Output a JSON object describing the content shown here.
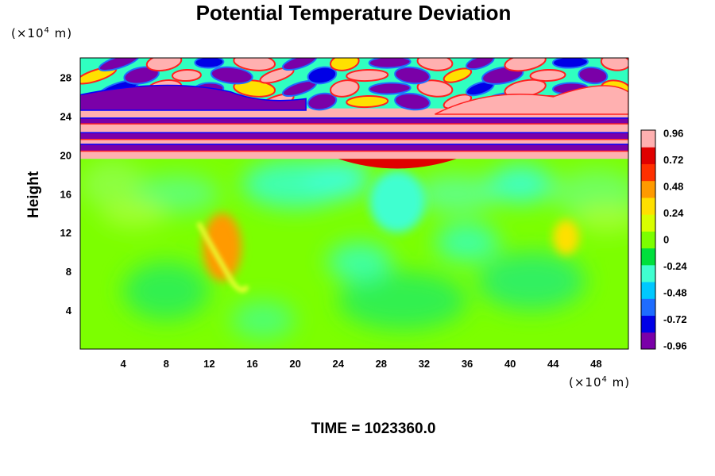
{
  "title": "Potential Temperature Deviation",
  "chart_data": {
    "type": "heatmap",
    "title": "Potential Temperature Deviation",
    "ylabel": "Height",
    "xunit": {
      "prefix": "(×10",
      "exp": "4",
      "suffix": " m)"
    },
    "yunit": {
      "prefix": "(×10",
      "exp": "4",
      "suffix": " m)"
    },
    "xlim": [
      0,
      51
    ],
    "ylim": [
      0,
      30
    ],
    "xticks": [
      4,
      8,
      12,
      16,
      20,
      24,
      28,
      32,
      36,
      40,
      44,
      48
    ],
    "yticks": [
      4,
      8,
      12,
      16,
      20,
      24,
      28
    ],
    "colorbar": {
      "ticks": [
        "0.96",
        "0.72",
        "0.48",
        "0.24",
        "0",
        "-0.24",
        "-0.48",
        "-0.72",
        "-0.96"
      ],
      "range": [
        -0.96,
        0.96
      ],
      "colors": [
        "#7a00a8",
        "#0000e6",
        "#1e6cff",
        "#00c8ff",
        "#40ffd0",
        "#00e03c",
        "#7cff00",
        "#d8ff00",
        "#ffe000",
        "#ff9a00",
        "#ff3000",
        "#e00000",
        "#ffb0b0"
      ]
    },
    "background_value_lower": 0.05,
    "bands": [
      {
        "y0": 19.6,
        "y1": 20.4,
        "value": 0.96
      },
      {
        "y0": 20.4,
        "y1": 21.1,
        "value": -0.96
      },
      {
        "y0": 21.1,
        "y1": 21.6,
        "value": 0.96
      },
      {
        "y0": 21.6,
        "y1": 22.3,
        "value": -0.96
      },
      {
        "y0": 22.3,
        "y1": 23.2,
        "value": 0.96
      },
      {
        "y0": 23.2,
        "y1": 23.8,
        "value": -0.96
      },
      {
        "y0": 23.8,
        "y1": 24.8,
        "value": 0.96
      }
    ],
    "features": [
      {
        "name": "cool plume near x=29",
        "x": 29.5,
        "y": 15.2,
        "rx": 2.6,
        "ry": 3.2,
        "value": -0.3
      },
      {
        "name": "warm filament near x=14",
        "x": 13.2,
        "y": 10.5,
        "rx": 1.8,
        "ry": 3.5,
        "value": 0.4
      },
      {
        "name": "warm filament near x=45",
        "x": 45.2,
        "y": 11.5,
        "rx": 1.2,
        "ry": 1.8,
        "value": 0.3
      }
    ]
  },
  "time_label": "TIME = 1023360.0"
}
